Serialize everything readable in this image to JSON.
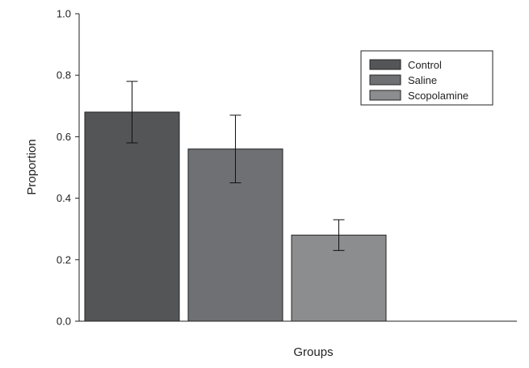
{
  "chart_data": {
    "type": "bar",
    "categories": [
      "Control",
      "Saline",
      "Scopolamine"
    ],
    "values": [
      0.68,
      0.56,
      0.28
    ],
    "errors": [
      0.1,
      0.11,
      0.05
    ],
    "colors": [
      "#545557",
      "#6e7073",
      "#8c8d8f"
    ],
    "xlabel": "Groups",
    "ylabel": "Proportion",
    "ylim": [
      0,
      1.0
    ],
    "yticks": [
      "0.0",
      "0.2",
      "0.4",
      "0.6",
      "0.8",
      "1.0"
    ],
    "legend": {
      "position": "top-right",
      "entries": [
        "Control",
        "Saline",
        "Scopolamine"
      ]
    },
    "grid": false
  }
}
